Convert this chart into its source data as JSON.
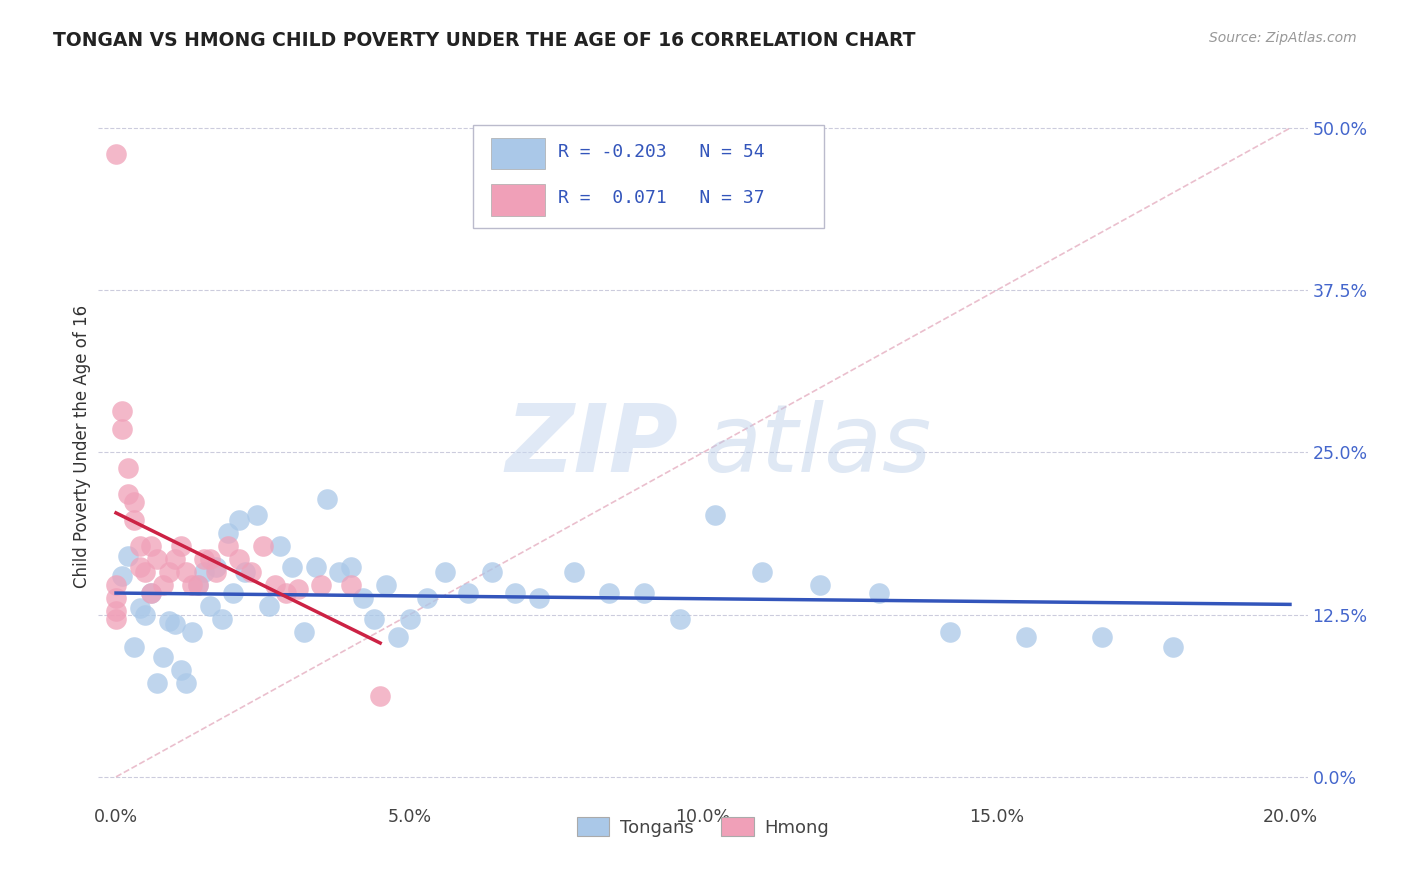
{
  "title": "TONGAN VS HMONG CHILD POVERTY UNDER THE AGE OF 16 CORRELATION CHART",
  "source": "Source: ZipAtlas.com",
  "ylabel": "Child Poverty Under the Age of 16",
  "xlabel_ticks": [
    "0.0%",
    "5.0%",
    "10.0%",
    "15.0%",
    "20.0%"
  ],
  "xlabel_vals": [
    0.0,
    0.05,
    0.1,
    0.15,
    0.2
  ],
  "ylabel_ticks": [
    "0.0%",
    "12.5%",
    "25.0%",
    "37.5%",
    "50.0%"
  ],
  "ylabel_vals": [
    0.0,
    0.125,
    0.25,
    0.375,
    0.5
  ],
  "xlim": [
    -0.002,
    0.202
  ],
  "ylim": [
    -0.01,
    0.52
  ],
  "legend_label1": "Tongans",
  "legend_label2": "Hmong",
  "R_tongans": -0.203,
  "N_tongans": 54,
  "R_hmong": 0.071,
  "N_hmong": 37,
  "color_tongans": "#aac8e8",
  "color_hmong": "#f0a0b8",
  "trendline_color_tongans": "#3355bb",
  "trendline_color_hmong": "#cc2244",
  "diagonal_color": "#e8b8c8",
  "background_color": "#ffffff",
  "watermark_zip": "ZIP",
  "watermark_atlas": "atlas",
  "tongans_x": [
    0.001,
    0.002,
    0.003,
    0.004,
    0.005,
    0.006,
    0.007,
    0.008,
    0.009,
    0.01,
    0.011,
    0.012,
    0.013,
    0.014,
    0.015,
    0.016,
    0.017,
    0.018,
    0.019,
    0.02,
    0.021,
    0.022,
    0.024,
    0.026,
    0.028,
    0.03,
    0.032,
    0.034,
    0.036,
    0.038,
    0.04,
    0.042,
    0.044,
    0.046,
    0.048,
    0.05,
    0.053,
    0.056,
    0.06,
    0.064,
    0.068,
    0.072,
    0.078,
    0.084,
    0.09,
    0.096,
    0.102,
    0.11,
    0.12,
    0.13,
    0.142,
    0.155,
    0.168,
    0.18
  ],
  "tongans_y": [
    0.155,
    0.17,
    0.1,
    0.13,
    0.125,
    0.142,
    0.072,
    0.092,
    0.12,
    0.118,
    0.082,
    0.072,
    0.112,
    0.148,
    0.158,
    0.132,
    0.162,
    0.122,
    0.188,
    0.142,
    0.198,
    0.158,
    0.202,
    0.132,
    0.178,
    0.162,
    0.112,
    0.162,
    0.214,
    0.158,
    0.162,
    0.138,
    0.122,
    0.148,
    0.108,
    0.122,
    0.138,
    0.158,
    0.142,
    0.158,
    0.142,
    0.138,
    0.158,
    0.142,
    0.142,
    0.122,
    0.202,
    0.158,
    0.148,
    0.142,
    0.112,
    0.108,
    0.108,
    0.1
  ],
  "hmong_x": [
    0.0,
    0.0,
    0.0,
    0.0,
    0.0,
    0.001,
    0.001,
    0.002,
    0.002,
    0.003,
    0.003,
    0.004,
    0.004,
    0.005,
    0.006,
    0.006,
    0.007,
    0.008,
    0.009,
    0.01,
    0.011,
    0.012,
    0.013,
    0.014,
    0.015,
    0.016,
    0.017,
    0.019,
    0.021,
    0.023,
    0.025,
    0.027,
    0.029,
    0.031,
    0.035,
    0.04,
    0.045
  ],
  "hmong_y": [
    0.48,
    0.148,
    0.138,
    0.128,
    0.122,
    0.282,
    0.268,
    0.238,
    0.218,
    0.212,
    0.198,
    0.178,
    0.162,
    0.158,
    0.178,
    0.142,
    0.168,
    0.148,
    0.158,
    0.168,
    0.178,
    0.158,
    0.148,
    0.148,
    0.168,
    0.168,
    0.158,
    0.178,
    0.168,
    0.158,
    0.178,
    0.148,
    0.142,
    0.145,
    0.148,
    0.148,
    0.062
  ]
}
